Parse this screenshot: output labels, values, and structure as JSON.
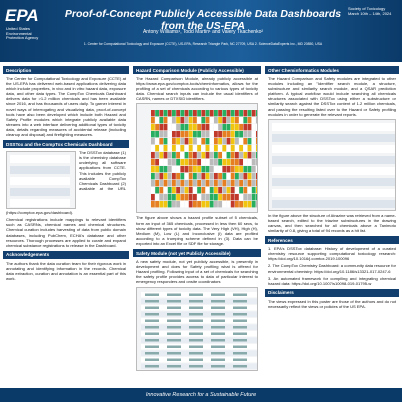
{
  "header": {
    "logo": "EPA",
    "agency": "United States Environmental Protection Agency",
    "title": "Proof-of-Concept Publicly Accessible Data Dashboards from the US-EPA",
    "authors": "Antony Williams¹, Todd Martin¹ and Valery Tkachenko²",
    "affiliations": "1. Center for Computational Toxicology and Exposure (CCTE), US-EPA, Research Triangle Park, NC 27709, USA 2. ScienceDataExperts Inc., MD 20850, USA",
    "event": "Society of Toxicology",
    "dates": "March 10th – 14th, 2024"
  },
  "columns": [
    [
      {
        "heading": "Description",
        "paragraphs": [
          "The Center for Computational Toxicology and Exposure (CCTE) at the US-EPA has delivered web-based applications delivering data which include properties, in vivo and in vitro hazard data, exposure data, and other data types. The CompTox Chemicals Dashboard delivers data for >1.2 million chemicals and has been available since 2016, and has thousands of users daily. To garner interest in novel ways of interrogating and visualizing data, proof-of-concept tools have also been developed which include both Hazard and Safety Profile modules which integrate publicly available data streams into a web interface delivering additional types of toxicity data, details regarding measures of accidental release (including cleanup and disposal) and firefighting measures."
        ]
      },
      {
        "heading": "DSSTox and the CompTox Chemicals Dashboard",
        "paragraphs": [
          "The DSSTox database (1) is the chemistry database underlying all software applications from CCTE. This includes the publicly available CompTox Chemicals Dashboard (2) available at the URL (https://comptox.epa.gov/dashboard).",
          "Chemical registrations include mappings to relevant identifiers such as CASRNs, chemical names and chemical structures. Chemical curation includes harvesting of data from public domain databases, including PubChem, ECHA's database and other resources. Thorough processes are applied to curate and expand chemical substance registrations to release in the Dashboard."
        ]
      },
      {
        "heading": "Acknowledgements",
        "paragraphs": [
          "The authors thank the data curation team for their rigorous work in annotating and identifying information in the records. Chemical data extraction, curation and annotation is an essential part of this work."
        ]
      }
    ],
    [
      {
        "heading": "Hazard Comparison Module (Publicly Accessible)",
        "paragraphs": [
          "The Hazard Comparison Module, already publicly accessible at https://www.epa.gov/comptox-tools/cheminformatics, allows for the profiling of a set of chemicals according to various types of toxicity data. Chemical search inputs can include the usual identifiers of CASRN, names or DTXSID identifiers.",
          "The figure above shows a hazard profile subset of 5 chemicals, form an input of 365 chemicals, processed in less then 60 secs, to show different types of toxicity data. The Very High (VH), High (H), Medium (M), Low (L) and Inconclusive (I) data are profiled according to a trumping scheme defined in (3). Data can be exported into an Excel file or SDF file for storage."
        ]
      },
      {
        "heading": "Safety Module (not yet Publicly Accessible)",
        "paragraphs": [
          "A new safety module, not yet publicly accessible, is presently in development and does for Safety profiling what is offered for Hazard profiling. Following input of a set of chemicals for searching the safety profile provides access to data of particular interest to emergency responders and onsite coordinators"
        ]
      }
    ],
    [
      {
        "heading": "Other Cheminformatics Modules",
        "paragraphs": [
          "The Hazard Comparison and Safety modules are integrated to other modules including an \"Identifier search module, a structure, substructure and similarity search module, and a QSAR prediction platform. A typical workflow would include searching all chemicals structures associated with DSSTox using either a substructure or similarity search against the DSSTox content of 1.2 million chemicals, and passing the resulting listed over to the Hazard or Safety profiling modules in order to generate the relevant reports.",
          "In the figure above the structure of Atrazine was retrieved from a name-based search, edited to the triazine substructures in the drawing canvas, and then searched for all chemicals above a Tanimoto similarity of 0.8, giving a total of 94 records as a hit list."
        ]
      },
      {
        "heading": "References",
        "paragraphs": [
          "1. EPA's DSSTox database: History of development of a curated chemistry resource supporting computational toxicology research: https://doi.org/10.1016/j.comtox.2019.100096",
          "2. The CompTox Chemistry Dashboard: a community data resource for environmental chemistry: https://doi.org/10.1186/s13321-017-0247-6",
          "3. An automated framework for compiling and integrating chemical hazard data: https://doi.org/10.1007/s10098-019-01795-w"
        ]
      },
      {
        "heading": "Disclaimers",
        "paragraphs": [
          "The views expressed in this poster are those of the authors and do not necessarily reflect the views or policies of the US EPA."
        ]
      }
    ]
  ],
  "footer": "Innovative Research for a Sustainable Future"
}
